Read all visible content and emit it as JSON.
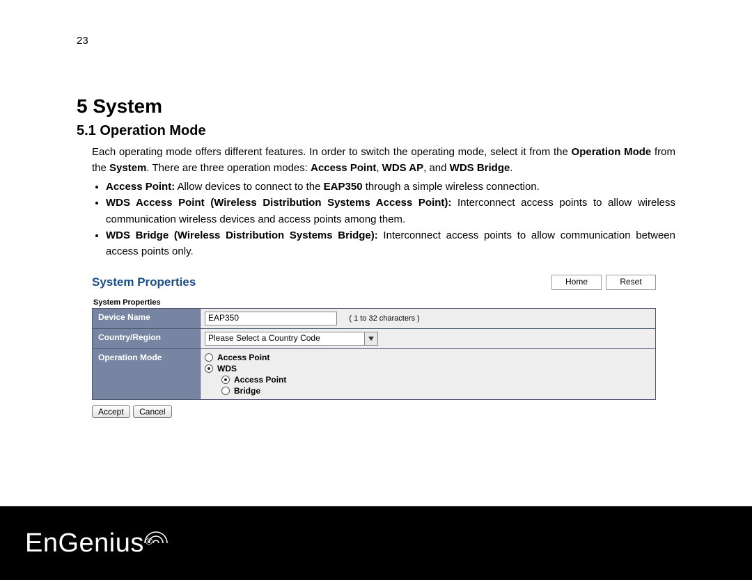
{
  "page_number": "23",
  "heading": "5  System",
  "subheading": "5.1   Operation Mode",
  "intro_html": "Each operating mode offers different features. In order to switch the operating mode, select it from the <b>Operation Mode</b> from the <b>System</b>. There are three operation modes: <b>Access Point</b>, <b>WDS AP</b>, and <b>WDS Bridge</b>.",
  "bullets": [
    "<b>Access Point:</b>  Allow devices to connect to the <b>EAP350</b> through a simple wireless connection.",
    "<b>WDS Access Point (Wireless Distribution Systems Access Point):</b> Interconnect access points to allow wireless communication wireless devices and access points among them.",
    "<b>WDS Bridge (Wireless Distribution Systems Bridge):</b> Interconnect access points to allow communication between access points only."
  ],
  "panel": {
    "title": "System Properties",
    "home_btn": "Home",
    "reset_btn": "Reset",
    "table_caption": "System Properties",
    "rows": {
      "device_name_label": "Device Name",
      "device_name_value": "EAP350",
      "device_name_hint": "( 1 to 32 characters )",
      "country_label": "Country/Region",
      "country_value": "Please Select a Country Code",
      "opmode_label": "Operation Mode",
      "opmode": {
        "ap": "Access Point",
        "wds": "WDS",
        "wds_ap": "Access Point",
        "wds_bridge": "Bridge"
      }
    },
    "accept_btn": "Accept",
    "cancel_btn": "Cancel"
  },
  "brand": {
    "part1": "En",
    "part2": "Genius",
    "reg": "®"
  },
  "colors": {
    "panel_title": "#1b4d87",
    "row_label_bg": "#7885a2",
    "row_val_bg": "#eeeeee",
    "border": "#4d5a74",
    "footer_bg": "#000000"
  }
}
